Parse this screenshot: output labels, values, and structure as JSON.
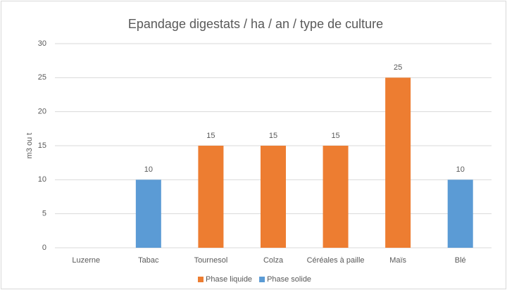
{
  "chart_data": {
    "type": "bar",
    "title": "Epandage digestats / ha / an / type de culture",
    "y_label": "m3 ou t",
    "categories": [
      "Luzerne",
      "Tabac",
      "Tournesol",
      "Colza",
      "Céréales à paille",
      "Maïs",
      "Blé"
    ],
    "series": [
      {
        "name": "Phase liquide",
        "color": "#ed7d31",
        "values": [
          null,
          null,
          15,
          15,
          15,
          25,
          null
        ]
      },
      {
        "name": "Phase solide",
        "color": "#5b9bd5",
        "values": [
          null,
          10,
          null,
          null,
          null,
          null,
          10
        ]
      }
    ],
    "ylim": [
      0,
      30
    ],
    "yticks": [
      0,
      5,
      10,
      15,
      20,
      25,
      30
    ],
    "grid": true,
    "legend": "bottom"
  }
}
